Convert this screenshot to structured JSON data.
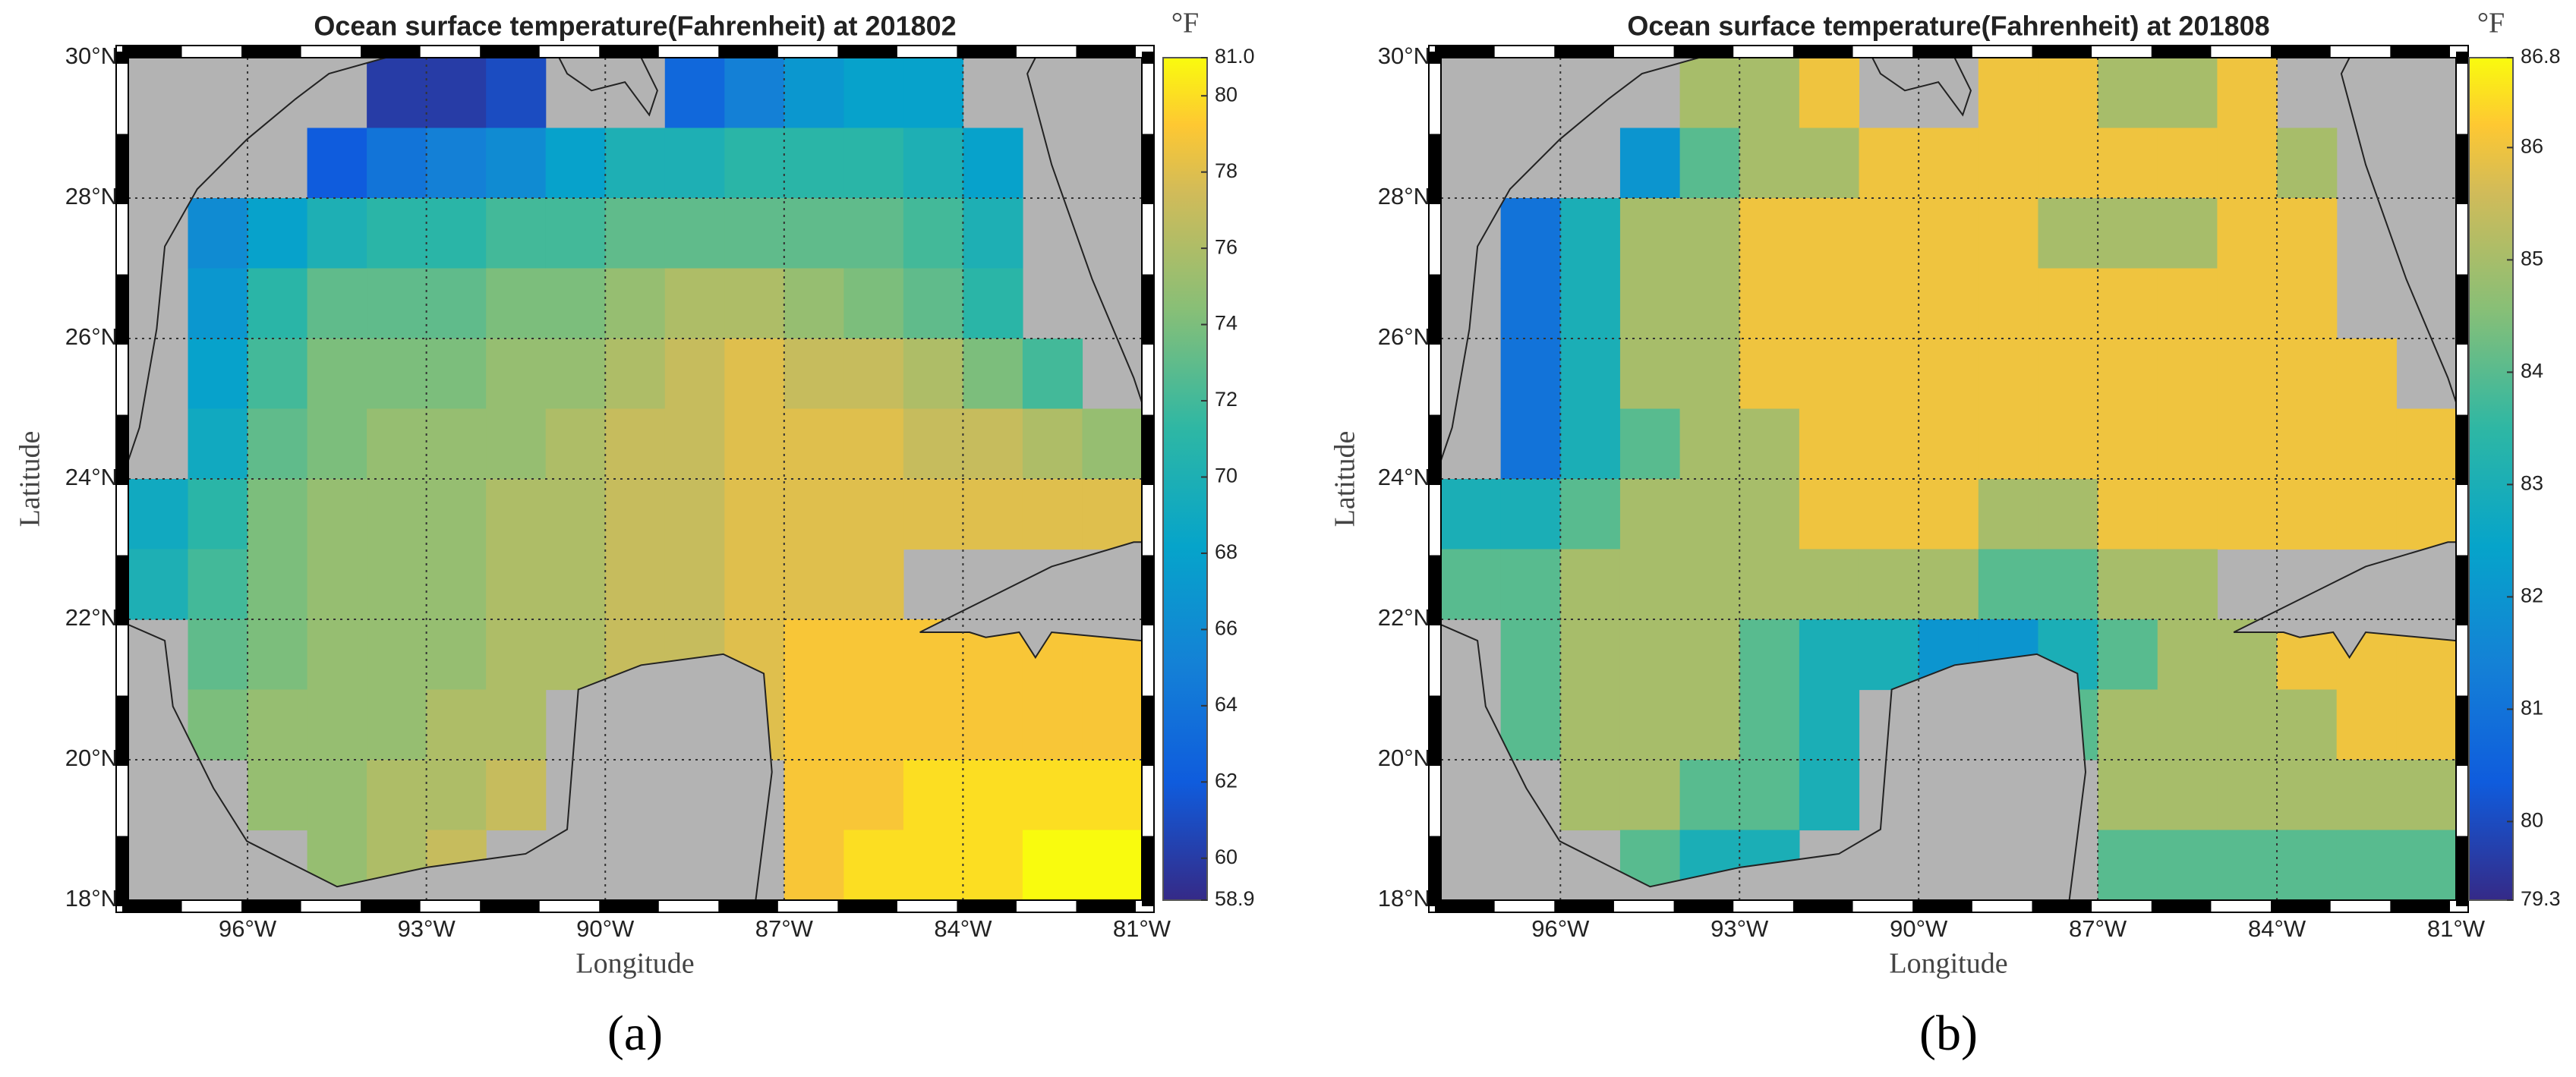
{
  "chart_data": [
    {
      "type": "heatmap",
      "title": "Ocean surface temperature(Fahrenheit) at 201802",
      "xlabel": "Longitude",
      "ylabel": "Latitude",
      "colorbar_label": "°F",
      "caption": "(a)",
      "x": [
        -97.5,
        -96.5,
        -95.5,
        -94.5,
        -93.5,
        -92.5,
        -91.5,
        -90.5,
        -89.5,
        -88.5,
        -87.5,
        -86.5,
        -85.5,
        -84.5,
        -83.5,
        -82.5,
        -81.5
      ],
      "y": [
        29.5,
        28.5,
        27.5,
        26.5,
        25.5,
        24.5,
        23.5,
        22.5,
        21.5,
        20.5,
        19.5,
        18.5
      ],
      "z": [
        [
          null,
          null,
          null,
          null,
          60,
          60,
          61,
          null,
          null,
          63,
          65,
          67,
          68,
          68,
          null,
          null,
          null
        ],
        [
          null,
          null,
          null,
          62,
          64,
          65,
          66,
          68,
          70,
          70,
          71,
          71,
          71,
          70,
          68,
          null,
          null
        ],
        [
          null,
          66,
          68,
          70,
          71,
          71,
          72,
          72,
          73,
          73,
          73,
          73,
          73,
          72,
          70,
          null,
          null
        ],
        [
          null,
          67,
          71,
          73,
          73,
          73,
          74,
          74,
          75,
          76,
          76,
          75,
          74,
          73,
          71,
          null,
          null
        ],
        [
          null,
          68,
          72,
          74,
          74,
          74,
          75,
          75,
          76,
          77,
          78,
          77,
          77,
          76,
          74,
          72,
          null
        ],
        [
          null,
          69,
          73,
          74,
          75,
          75,
          75,
          76,
          77,
          77,
          78,
          78,
          78,
          77,
          77,
          76,
          75
        ],
        [
          69,
          71,
          74,
          75,
          75,
          75,
          76,
          76,
          77,
          77,
          78,
          78,
          78,
          78,
          78,
          78,
          78
        ],
        [
          70,
          72,
          74,
          75,
          75,
          75,
          76,
          76,
          77,
          77,
          78,
          78,
          78,
          null,
          null,
          null,
          null
        ],
        [
          null,
          73,
          74,
          75,
          75,
          75,
          76,
          76,
          77,
          77,
          78,
          79,
          79,
          79,
          79,
          79,
          79
        ],
        [
          null,
          74,
          75,
          75,
          75,
          76,
          76,
          null,
          null,
          null,
          78,
          79,
          79,
          79,
          79,
          79,
          79
        ],
        [
          null,
          null,
          75,
          75,
          76,
          76,
          77,
          null,
          null,
          null,
          null,
          79,
          79,
          80,
          80,
          80,
          80
        ],
        [
          null,
          null,
          null,
          75,
          76,
          77,
          null,
          null,
          null,
          null,
          null,
          79,
          80,
          80,
          80,
          81,
          81
        ]
      ],
      "xlim": [
        -98,
        -81
      ],
      "ylim": [
        18,
        30
      ],
      "xticks": [
        {
          "value": -96,
          "label": "96°W"
        },
        {
          "value": -93,
          "label": "93°W"
        },
        {
          "value": -90,
          "label": "90°W"
        },
        {
          "value": -87,
          "label": "87°W"
        },
        {
          "value": -84,
          "label": "84°W"
        },
        {
          "value": -81,
          "label": "81°W"
        }
      ],
      "yticks": [
        {
          "value": 18,
          "label": "18°N"
        },
        {
          "value": 20,
          "label": "20°N"
        },
        {
          "value": 22,
          "label": "22°N"
        },
        {
          "value": 24,
          "label": "24°N"
        },
        {
          "value": 26,
          "label": "26°N"
        },
        {
          "value": 28,
          "label": "28°N"
        },
        {
          "value": 30,
          "label": "30°N"
        }
      ],
      "clim": [
        58.9,
        81
      ],
      "cticks": [
        58.9,
        60,
        62,
        64,
        66,
        68,
        70,
        72,
        74,
        76,
        78,
        80,
        {
          "value": 81,
          "label": "81.0"
        }
      ],
      "grid": true
    },
    {
      "type": "heatmap",
      "title": "Ocean surface temperature(Fahrenheit) at 201808",
      "xlabel": "Longitude",
      "ylabel": "Latitude",
      "colorbar_label": "°F",
      "caption": "(b)",
      "x": [
        -97.5,
        -96.5,
        -95.5,
        -94.5,
        -93.5,
        -92.5,
        -91.5,
        -90.5,
        -89.5,
        -88.5,
        -87.5,
        -86.5,
        -85.5,
        -84.5,
        -83.5,
        -82.5,
        -81.5
      ],
      "y": [
        29.5,
        28.5,
        27.5,
        26.5,
        25.5,
        24.5,
        23.5,
        22.5,
        21.5,
        20.5,
        19.5,
        18.5
      ],
      "z": [
        [
          null,
          null,
          null,
          null,
          85,
          85,
          86,
          null,
          null,
          86,
          86,
          85,
          85,
          86,
          null,
          null,
          null
        ],
        [
          null,
          null,
          null,
          82,
          84,
          85,
          85,
          86,
          86,
          86,
          86,
          86,
          86,
          86,
          85,
          null,
          null
        ],
        [
          null,
          81,
          83,
          85,
          85,
          86,
          86,
          86,
          86,
          86,
          85,
          85,
          85,
          86,
          86,
          null,
          null
        ],
        [
          null,
          81,
          83,
          85,
          85,
          86,
          86,
          86,
          86,
          86,
          86,
          86,
          86,
          86,
          86,
          null,
          null
        ],
        [
          null,
          81,
          83,
          85,
          85,
          86,
          86,
          86,
          86,
          86,
          86,
          86,
          86,
          86,
          86,
          86,
          null
        ],
        [
          null,
          81,
          83,
          84,
          85,
          85,
          86,
          86,
          86,
          86,
          86,
          86,
          86,
          86,
          86,
          86,
          86
        ],
        [
          83,
          83,
          84,
          85,
          85,
          85,
          86,
          86,
          86,
          85,
          85,
          86,
          86,
          86,
          86,
          86,
          86
        ],
        [
          84,
          84,
          85,
          85,
          85,
          85,
          85,
          85,
          85,
          84,
          84,
          85,
          85,
          null,
          null,
          null,
          null
        ],
        [
          null,
          84,
          85,
          85,
          85,
          84,
          83,
          83,
          82,
          82,
          83,
          84,
          85,
          85,
          86,
          86,
          86
        ],
        [
          null,
          84,
          85,
          85,
          85,
          84,
          83,
          null,
          null,
          null,
          84,
          85,
          85,
          85,
          85,
          86,
          86
        ],
        [
          null,
          null,
          85,
          85,
          84,
          84,
          83,
          null,
          null,
          null,
          null,
          85,
          85,
          85,
          85,
          85,
          85
        ],
        [
          null,
          null,
          null,
          84,
          83,
          83,
          null,
          null,
          null,
          null,
          null,
          84,
          84,
          84,
          84,
          84,
          84
        ]
      ],
      "xlim": [
        -98,
        -81
      ],
      "ylim": [
        18,
        30
      ],
      "xticks": [
        {
          "value": -96,
          "label": "96°W"
        },
        {
          "value": -93,
          "label": "93°W"
        },
        {
          "value": -90,
          "label": "90°W"
        },
        {
          "value": -87,
          "label": "87°W"
        },
        {
          "value": -84,
          "label": "84°W"
        },
        {
          "value": -81,
          "label": "81°W"
        }
      ],
      "yticks": [
        {
          "value": 18,
          "label": "18°N"
        },
        {
          "value": 20,
          "label": "20°N"
        },
        {
          "value": 22,
          "label": "22°N"
        },
        {
          "value": 24,
          "label": "24°N"
        },
        {
          "value": 26,
          "label": "26°N"
        },
        {
          "value": 28,
          "label": "28°N"
        },
        {
          "value": 30,
          "label": "30°N"
        }
      ],
      "clim": [
        79.3,
        86.8
      ],
      "cticks": [
        79.3,
        80,
        81,
        82,
        83,
        84,
        85,
        86,
        86.8
      ],
      "grid": true
    }
  ]
}
